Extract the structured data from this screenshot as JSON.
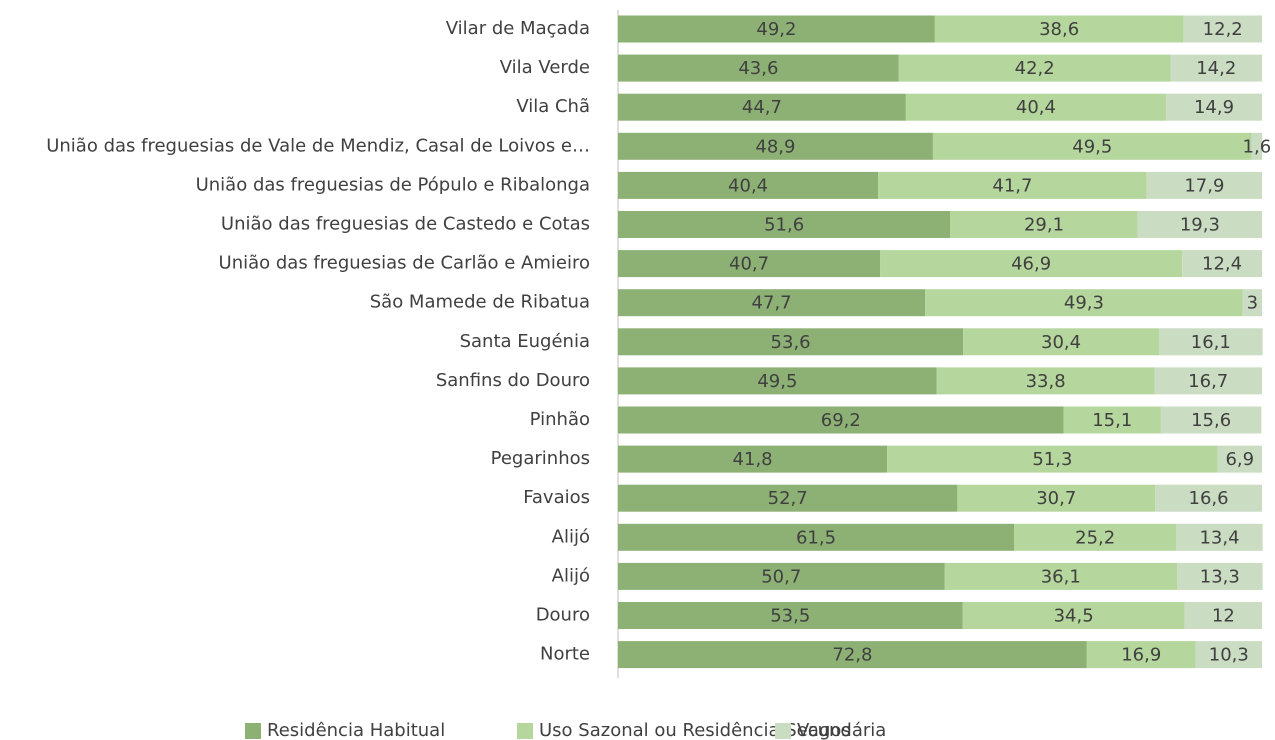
{
  "chart_data": {
    "type": "stacked-barh",
    "categories": [
      "Vilar de Maçada",
      "Vila Verde",
      "Vila Chã",
      "União das freguesias de Vale de Mendiz, Casal de Loivos e…",
      "União das freguesias de Pópulo e Ribalonga",
      "União das freguesias de Castedo e Cotas",
      "União das freguesias de Carlão e Amieiro",
      "São Mamede de Ribatua",
      "Santa Eugénia",
      "Sanfins do Douro",
      "Pinhão",
      "Pegarinhos",
      "Favaios",
      "Alijó",
      "Alijó",
      "Douro",
      "Norte"
    ],
    "xlim": [
      0,
      100
    ],
    "series": [
      {
        "name": "Residência Habitual",
        "color": "#8db075",
        "values": [
          49.2,
          43.6,
          44.7,
          48.9,
          40.4,
          51.6,
          40.7,
          47.7,
          53.6,
          49.5,
          69.2,
          41.8,
          52.7,
          61.5,
          50.7,
          53.5,
          72.8
        ],
        "value_labels": [
          "49,2",
          "43,6",
          "44,7",
          "48,9",
          "40,4",
          "51,6",
          "40,7",
          "47,7",
          "53,6",
          "49,5",
          "69,2",
          "41,8",
          "52,7",
          "61,5",
          "50,7",
          "53,5",
          "72,8"
        ]
      },
      {
        "name": "Uso Sazonal ou Residência Secundária",
        "color": "#b5d69c",
        "values": [
          38.6,
          42.2,
          40.4,
          49.5,
          41.7,
          29.1,
          46.9,
          49.3,
          30.4,
          33.8,
          15.1,
          51.3,
          30.7,
          25.2,
          36.1,
          34.5,
          16.9
        ],
        "value_labels": [
          "38,6",
          "42,2",
          "40,4",
          "49,5",
          "41,7",
          "29,1",
          "46,9",
          "49,3",
          "30,4",
          "33,8",
          "15,1",
          "51,3",
          "30,7",
          "25,2",
          "36,1",
          "34,5",
          "16,9"
        ]
      },
      {
        "name": "Vagos",
        "color": "#cadcc2",
        "values": [
          12.2,
          14.2,
          14.9,
          1.6,
          17.9,
          19.3,
          12.4,
          3,
          16.1,
          16.7,
          15.6,
          6.9,
          16.6,
          13.4,
          13.3,
          12,
          10.3
        ],
        "value_labels": [
          "12,2",
          "14,2",
          "14,9",
          "1,6",
          "17,9",
          "19,3",
          "12,4",
          "3",
          "16,1",
          "16,7",
          "15,6",
          "6,9",
          "16,6",
          "13,4",
          "13,3",
          "12",
          "10,3"
        ]
      }
    ],
    "legend": "bottom"
  }
}
